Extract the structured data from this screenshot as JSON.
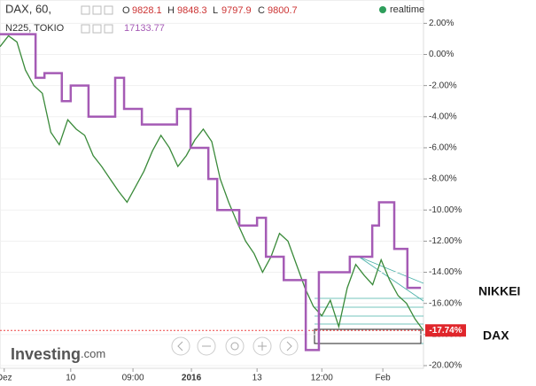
{
  "header": {
    "symbol": "DAX, 60,",
    "open_label": "O",
    "open": "9828.1",
    "high_label": "H",
    "high": "9848.3",
    "low_label": "L",
    "low": "9797.9",
    "close_label": "C",
    "close": "9800.7",
    "realtime": "realtime",
    "compare_symbol": "N225, TOKIO",
    "compare_value": "17133.77"
  },
  "chart_data": {
    "type": "line",
    "xlim": [
      0,
      100
    ],
    "xticks": [
      {
        "value": 1,
        "label": "Dez"
      },
      {
        "value": 16.7,
        "label": "10"
      },
      {
        "value": 31.4,
        "label": "09:00"
      },
      {
        "value": 45.2,
        "label": "2016"
      },
      {
        "value": 60.7,
        "label": "13"
      },
      {
        "value": 76,
        "label": "12:00"
      },
      {
        "value": 90.4,
        "label": "Feb"
      }
    ],
    "ylim": [
      -20.4,
      3.5
    ],
    "yticks": [
      {
        "value": 2,
        "label": "2.00%"
      },
      {
        "value": 0,
        "label": "0.00%"
      },
      {
        "value": -2,
        "label": "-2.00%"
      },
      {
        "value": -4,
        "label": "-4.00%"
      },
      {
        "value": -6,
        "label": "-6.00%"
      },
      {
        "value": -8,
        "label": "-8.00%"
      },
      {
        "value": -10,
        "label": "-10.00%"
      },
      {
        "value": -12,
        "label": "-12.00%"
      },
      {
        "value": -14,
        "label": "-14.00%"
      },
      {
        "value": -16,
        "label": "-16.00%"
      },
      {
        "value": -18,
        "label": "-18.00%"
      },
      {
        "value": -20,
        "label": "-20.00%"
      }
    ],
    "series": [
      {
        "name": "DAX",
        "color": "#3a8a3a",
        "x": [
          0,
          2,
          4,
          6,
          8,
          10,
          12,
          14,
          16,
          18,
          20,
          22,
          24,
          26,
          28,
          30,
          32,
          34,
          36,
          38,
          40,
          42,
          44,
          46,
          48,
          50,
          52,
          54,
          56,
          58,
          60,
          62,
          64,
          66,
          68,
          70,
          72,
          74,
          76,
          78,
          80,
          82,
          84,
          86,
          88,
          90,
          92,
          94,
          96,
          98,
          100
        ],
        "values": [
          0.5,
          1.2,
          0.8,
          -1,
          -2,
          -2.5,
          -5,
          -5.8,
          -4.2,
          -4.8,
          -5.2,
          -6.5,
          -7.2,
          -8,
          -8.8,
          -9.5,
          -8.5,
          -7.5,
          -6.2,
          -5.2,
          -6,
          -7.2,
          -6.5,
          -5.5,
          -4.8,
          -5.6,
          -8,
          -9.5,
          -10.8,
          -12,
          -12.8,
          -14,
          -13,
          -11.5,
          -12,
          -13.5,
          -15,
          -16.2,
          -16.8,
          -15.8,
          -17.5,
          -15,
          -13.5,
          -14.2,
          -14.8,
          -13.2,
          -14.5,
          -15.5,
          -16,
          -17,
          -17.74
        ]
      },
      {
        "name": "NIKKEI",
        "color": "#a55bb5",
        "step": true,
        "x": [
          0,
          8.4,
          10.5,
          14.6,
          16.7,
          20.9,
          27.2,
          29.3,
          33.5,
          41.8,
          45,
          49.2,
          51.3,
          56.5,
          60.7,
          62.8,
          67,
          72.2,
          75.3,
          82.6,
          87.9,
          89.5,
          93.1,
          96.2,
          99.4
        ],
        "values": [
          1.3,
          -1.5,
          -1.2,
          -3,
          -2,
          -4,
          -1.5,
          -3.5,
          -4.5,
          -3.5,
          -6,
          -8,
          -10,
          -11,
          -10.5,
          -13,
          -14.5,
          -19,
          -14,
          -13,
          -11,
          -9.5,
          -12.5,
          -15,
          -15
        ]
      }
    ],
    "last_value": {
      "value": -17.74,
      "label": "-17.74%"
    }
  },
  "logo": "Investing",
  "logo_suffix": ".com"
}
